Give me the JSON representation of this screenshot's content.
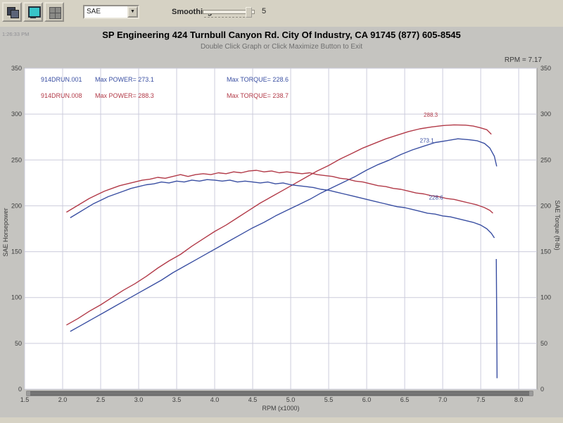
{
  "toolbar": {
    "buttons": [
      {
        "name": "copy-graph"
      },
      {
        "name": "screen-view"
      },
      {
        "name": "grid-options"
      }
    ],
    "combo_value": "SAE",
    "smoothing_label": "Smoothing",
    "smoothing_value": "5"
  },
  "header": {
    "timestamp": "1:26:33 PM",
    "title": "SP Engineering 424 Turnbull Canyon Rd. City Of Industry, CA 91745 (877) 605-8545",
    "subtitle": "Double Click Graph or Click Maximize Button to Exit",
    "readout": "RPM = 7.17"
  },
  "legend": {
    "rows": [
      {
        "file": "914DRUN.001",
        "power": "Max POWER= 273.1",
        "torque": "Max TORQUE= 228.6",
        "color": "#3a4fa2"
      },
      {
        "file": "914DRUN.008",
        "power": "Max POWER= 288.3",
        "torque": "Max TORQUE= 238.7",
        "color": "#b23a48"
      }
    ]
  },
  "colors": {
    "run1_blue": "#3a4fa2",
    "run2_red": "#b23a48",
    "grid": "#ccccdc",
    "plot_bg": "#ffffff",
    "panel_bg": "#c5c4c0",
    "scrollbar": "#757575"
  },
  "chart_data": {
    "type": "line",
    "title": "SP Engineering 424 Turnbull Canyon Rd. City Of Industry, CA 91745 (877) 605-8545",
    "xlabel": "RPM (x1000)",
    "ylabel_left": "SAE Horsepower",
    "ylabel_right": "SAE Torque (ft-lb)",
    "xlim": [
      1.5,
      8.24
    ],
    "ylim": [
      0,
      350
    ],
    "x_ticks": [
      "1.5",
      "2.0",
      "2.5",
      "3.0",
      "3.5",
      "4.0",
      "4.5",
      "5.0",
      "5.5",
      "6.0",
      "6.5",
      "7.0",
      "7.5",
      "8.0"
    ],
    "y_ticks": [
      0,
      50,
      100,
      150,
      200,
      250,
      300,
      350
    ],
    "grid": true,
    "legend_position": "top-left-inside",
    "series": [
      {
        "name": "run 914DRUN.008 horsepower",
        "color": "#b23a48",
        "max": 288.3,
        "points": [
          [
            2.05,
            70
          ],
          [
            2.2,
            77
          ],
          [
            2.35,
            85
          ],
          [
            2.5,
            92
          ],
          [
            2.65,
            100
          ],
          [
            2.8,
            108
          ],
          [
            2.95,
            115
          ],
          [
            3.1,
            123
          ],
          [
            3.25,
            132
          ],
          [
            3.4,
            140
          ],
          [
            3.55,
            147
          ],
          [
            3.7,
            156
          ],
          [
            3.85,
            164
          ],
          [
            4.0,
            172
          ],
          [
            4.15,
            179
          ],
          [
            4.3,
            187
          ],
          [
            4.45,
            195
          ],
          [
            4.6,
            203
          ],
          [
            4.75,
            210
          ],
          [
            4.9,
            217
          ],
          [
            5.05,
            224
          ],
          [
            5.2,
            231
          ],
          [
            5.35,
            238
          ],
          [
            5.5,
            244
          ],
          [
            5.65,
            251
          ],
          [
            5.8,
            257
          ],
          [
            5.95,
            263
          ],
          [
            6.1,
            268
          ],
          [
            6.25,
            273
          ],
          [
            6.4,
            277
          ],
          [
            6.55,
            281
          ],
          [
            6.7,
            284
          ],
          [
            6.85,
            286
          ],
          [
            7.0,
            287.5
          ],
          [
            7.15,
            288.3
          ],
          [
            7.3,
            288
          ],
          [
            7.4,
            287
          ],
          [
            7.5,
            285
          ],
          [
            7.58,
            283
          ],
          [
            7.64,
            278
          ]
        ]
      },
      {
        "name": "run 914DRUN.001 horsepower",
        "color": "#3a4fa2",
        "max": 273.1,
        "points": [
          [
            2.1,
            63
          ],
          [
            2.25,
            70
          ],
          [
            2.4,
            77
          ],
          [
            2.55,
            84
          ],
          [
            2.7,
            91
          ],
          [
            2.85,
            98
          ],
          [
            3.0,
            105
          ],
          [
            3.15,
            112
          ],
          [
            3.3,
            119
          ],
          [
            3.45,
            127
          ],
          [
            3.6,
            134
          ],
          [
            3.75,
            141
          ],
          [
            3.9,
            148
          ],
          [
            4.05,
            155
          ],
          [
            4.2,
            162
          ],
          [
            4.35,
            169
          ],
          [
            4.5,
            176
          ],
          [
            4.65,
            182
          ],
          [
            4.8,
            189
          ],
          [
            4.95,
            195
          ],
          [
            5.1,
            201
          ],
          [
            5.25,
            207
          ],
          [
            5.4,
            214
          ],
          [
            5.55,
            220
          ],
          [
            5.7,
            226
          ],
          [
            5.85,
            232
          ],
          [
            6.0,
            239
          ],
          [
            6.15,
            245
          ],
          [
            6.3,
            250
          ],
          [
            6.45,
            256
          ],
          [
            6.6,
            261
          ],
          [
            6.75,
            265
          ],
          [
            6.9,
            269
          ],
          [
            7.05,
            271
          ],
          [
            7.2,
            273.1
          ],
          [
            7.35,
            272
          ],
          [
            7.45,
            271
          ],
          [
            7.55,
            268
          ],
          [
            7.62,
            263
          ],
          [
            7.68,
            254
          ],
          [
            7.71,
            243
          ]
        ]
      },
      {
        "name": "run 914DRUN.008 torque",
        "color": "#b23a48",
        "max": 238.7,
        "points": [
          [
            2.05,
            193
          ],
          [
            2.15,
            198
          ],
          [
            2.25,
            203
          ],
          [
            2.35,
            208
          ],
          [
            2.45,
            212
          ],
          [
            2.55,
            216
          ],
          [
            2.65,
            219
          ],
          [
            2.75,
            222
          ],
          [
            2.85,
            224
          ],
          [
            2.95,
            226
          ],
          [
            3.05,
            228
          ],
          [
            3.15,
            229
          ],
          [
            3.25,
            231
          ],
          [
            3.35,
            230
          ],
          [
            3.45,
            232
          ],
          [
            3.55,
            234
          ],
          [
            3.65,
            232
          ],
          [
            3.75,
            234
          ],
          [
            3.85,
            235
          ],
          [
            3.95,
            234
          ],
          [
            4.05,
            236
          ],
          [
            4.15,
            235
          ],
          [
            4.25,
            237
          ],
          [
            4.35,
            236
          ],
          [
            4.45,
            238
          ],
          [
            4.55,
            238.7
          ],
          [
            4.65,
            237
          ],
          [
            4.75,
            238
          ],
          [
            4.85,
            236
          ],
          [
            4.95,
            237
          ],
          [
            5.05,
            236
          ],
          [
            5.15,
            235
          ],
          [
            5.25,
            236
          ],
          [
            5.35,
            234
          ],
          [
            5.45,
            233
          ],
          [
            5.55,
            232
          ],
          [
            5.65,
            230
          ],
          [
            5.75,
            229
          ],
          [
            5.85,
            227
          ],
          [
            5.95,
            226
          ],
          [
            6.05,
            224
          ],
          [
            6.15,
            222
          ],
          [
            6.25,
            221
          ],
          [
            6.35,
            219
          ],
          [
            6.45,
            218
          ],
          [
            6.55,
            216
          ],
          [
            6.65,
            214
          ],
          [
            6.75,
            213
          ],
          [
            6.85,
            211
          ],
          [
            6.95,
            210
          ],
          [
            7.05,
            208
          ],
          [
            7.15,
            207
          ],
          [
            7.25,
            205
          ],
          [
            7.35,
            203
          ],
          [
            7.45,
            201
          ],
          [
            7.55,
            198
          ],
          [
            7.62,
            195
          ],
          [
            7.66,
            192
          ]
        ]
      },
      {
        "name": "run 914DRUN.001 torque",
        "color": "#3a4fa2",
        "max": 228.6,
        "points": [
          [
            2.1,
            187
          ],
          [
            2.2,
            192
          ],
          [
            2.3,
            197
          ],
          [
            2.4,
            202
          ],
          [
            2.5,
            206
          ],
          [
            2.6,
            210
          ],
          [
            2.7,
            213
          ],
          [
            2.8,
            216
          ],
          [
            2.9,
            219
          ],
          [
            3.0,
            221
          ],
          [
            3.1,
            223
          ],
          [
            3.2,
            224
          ],
          [
            3.3,
            226
          ],
          [
            3.4,
            225
          ],
          [
            3.5,
            227
          ],
          [
            3.6,
            226
          ],
          [
            3.7,
            228
          ],
          [
            3.8,
            227
          ],
          [
            3.9,
            228.6
          ],
          [
            4.0,
            228
          ],
          [
            4.1,
            227
          ],
          [
            4.2,
            228
          ],
          [
            4.3,
            226
          ],
          [
            4.4,
            227
          ],
          [
            4.5,
            226
          ],
          [
            4.6,
            225
          ],
          [
            4.7,
            226
          ],
          [
            4.8,
            224
          ],
          [
            4.9,
            225
          ],
          [
            5.0,
            223
          ],
          [
            5.1,
            222
          ],
          [
            5.2,
            221
          ],
          [
            5.3,
            220
          ],
          [
            5.4,
            218
          ],
          [
            5.5,
            217
          ],
          [
            5.6,
            215
          ],
          [
            5.7,
            213
          ],
          [
            5.8,
            211
          ],
          [
            5.9,
            209
          ],
          [
            6.0,
            207
          ],
          [
            6.1,
            205
          ],
          [
            6.2,
            203
          ],
          [
            6.3,
            201
          ],
          [
            6.4,
            199
          ],
          [
            6.5,
            198
          ],
          [
            6.6,
            196
          ],
          [
            6.7,
            194
          ],
          [
            6.8,
            192
          ],
          [
            6.9,
            191
          ],
          [
            7.0,
            189
          ],
          [
            7.1,
            188
          ],
          [
            7.2,
            186
          ],
          [
            7.3,
            184
          ],
          [
            7.4,
            182
          ],
          [
            7.5,
            179
          ],
          [
            7.58,
            175
          ],
          [
            7.64,
            170
          ],
          [
            7.68,
            165
          ]
        ]
      },
      {
        "name": "run 914DRUN.001 rpm-drop tail",
        "color": "#3a4fa2",
        "max": 142,
        "points": [
          [
            7.705,
            142
          ],
          [
            7.71,
            80
          ],
          [
            7.715,
            12
          ]
        ]
      }
    ],
    "point_labels": [
      {
        "text": "288.3",
        "rpm": 6.75,
        "value": 297,
        "color": "#b23a48"
      },
      {
        "text": "273.1",
        "rpm": 6.7,
        "value": 269,
        "color": "#3a4fa2"
      },
      {
        "text": "228.6",
        "rpm": 6.82,
        "value": 207,
        "color": "#3a4fa2"
      }
    ]
  }
}
